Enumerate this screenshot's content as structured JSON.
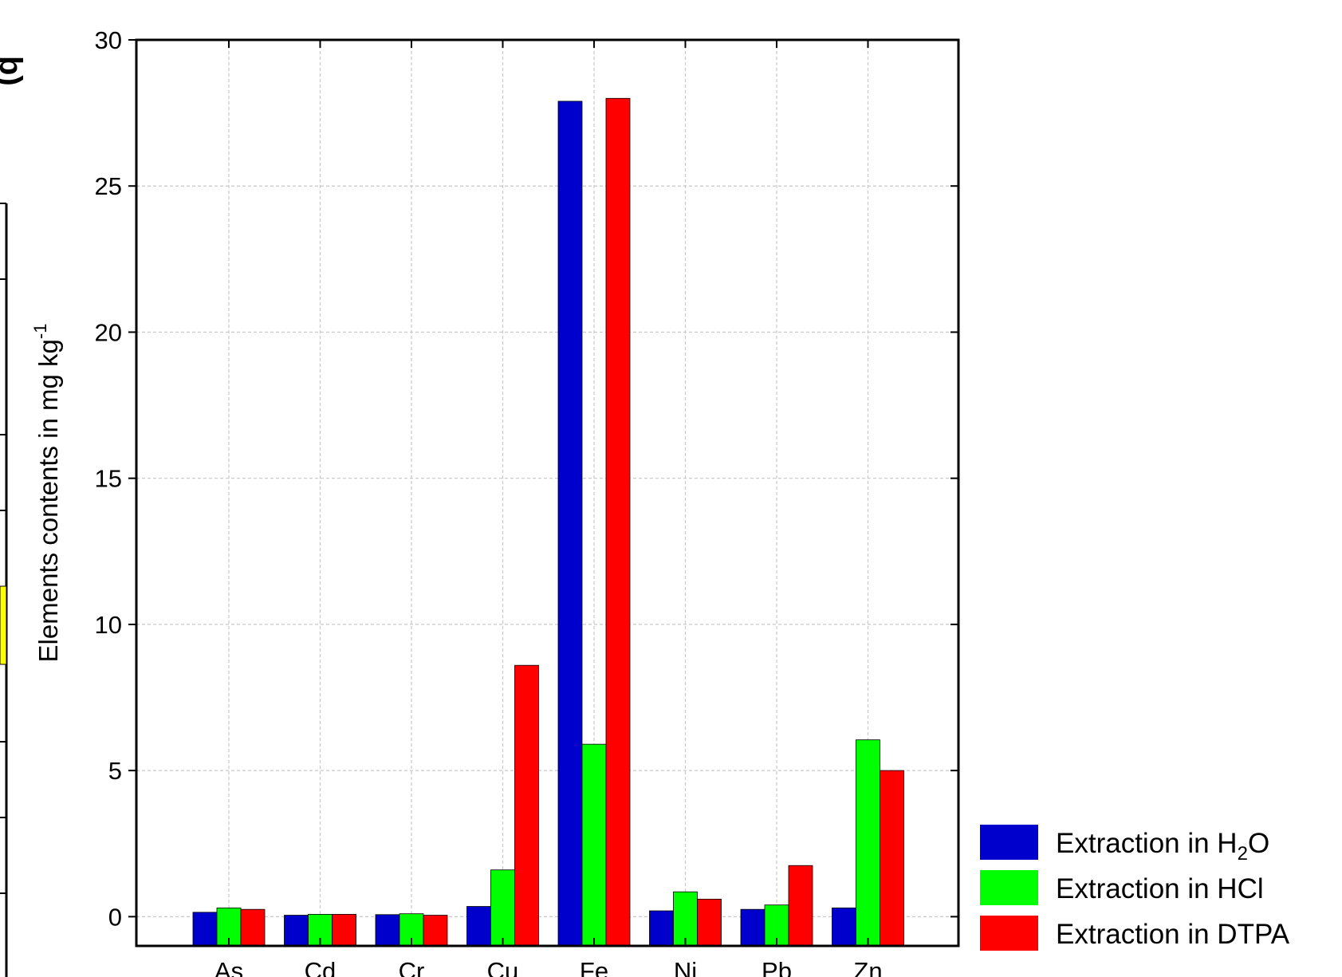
{
  "panel_label": "b)",
  "chart_data": {
    "type": "bar",
    "categories": [
      "As",
      "Cd",
      "Cr",
      "Cu",
      "Fe",
      "Ni",
      "Pb",
      "Zn"
    ],
    "series": [
      {
        "name": "Extraction in H₂O",
        "name_base": "Extraction in H",
        "name_sub": "2",
        "name_tail": "O",
        "color": "#0000cc",
        "values": [
          0.15,
          0.05,
          0.07,
          0.35,
          27.9,
          0.2,
          0.25,
          0.3
        ]
      },
      {
        "name": "Extraction in HCl",
        "name_base": "Extraction in HCl",
        "color": "#00ff00",
        "values": [
          0.3,
          0.08,
          0.1,
          1.6,
          5.9,
          0.85,
          0.4,
          6.05
        ]
      },
      {
        "name": "Extraction in DTPA",
        "name_base": "Extraction in DTPA",
        "color": "#ff0000",
        "values": [
          0.25,
          0.08,
          0.05,
          8.6,
          28.0,
          0.6,
          1.75,
          5.0
        ]
      }
    ],
    "ylabel": "Elements contents in mg kg",
    "ylabel_sup": "-1",
    "yticks": [
      0,
      5,
      10,
      15,
      20,
      25,
      30
    ],
    "ylim": [
      -1,
      30
    ],
    "grid": true,
    "legend_position": "bottom-right, outside plot"
  }
}
